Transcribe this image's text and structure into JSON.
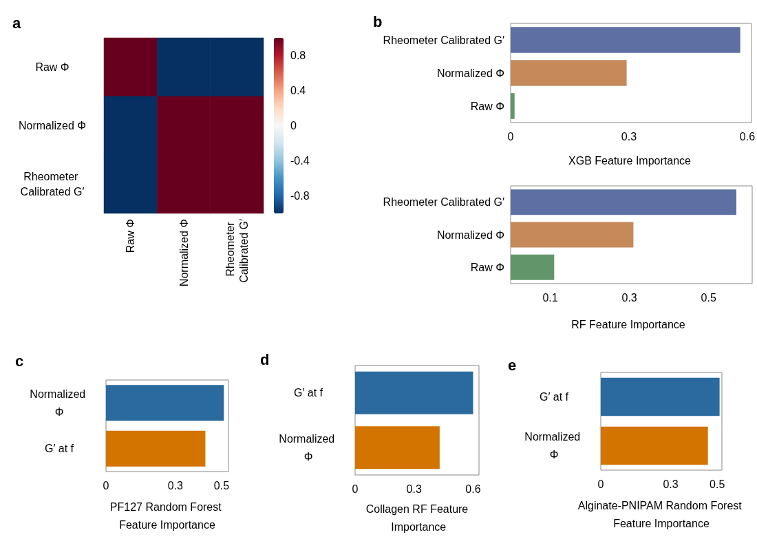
{
  "chart_data": [
    {
      "type": "heatmap",
      "annotations": [
        "a"
      ],
      "categories": [
        "Raw Φ",
        "Normalized Φ",
        "Rheometer Calibrated G′"
      ],
      "y_categories": [
        "Raw Φ",
        "Normalized Φ",
        "Rheometer Calibrated G′"
      ],
      "cells": [
        [
          1,
          -1,
          -1
        ],
        [
          -1,
          1,
          1
        ],
        [
          -1,
          1,
          1
        ]
      ],
      "clim": [
        -1,
        1
      ],
      "cticks": [
        -0.8,
        -0.4,
        0,
        0.4,
        0.8
      ]
    },
    {
      "type": "bar",
      "orientation": "horizontal",
      "annotations": [
        "b"
      ],
      "categories": [
        "Rheometer Calibrated G′",
        "Normalized Φ",
        "Raw Φ"
      ],
      "values": [
        0.582,
        0.294,
        0.01
      ],
      "colors": [
        "#5d6fa3",
        "#c5895a",
        "#62966a"
      ],
      "xlabel": "XGB Feature Importance",
      "xlim": [
        0,
        0.61
      ],
      "xticks": [
        0,
        0.3,
        0.6
      ]
    },
    {
      "type": "bar",
      "orientation": "horizontal",
      "categories": [
        "Rheometer Calibrated G′",
        "Normalized Φ",
        "Raw Φ"
      ],
      "values": [
        0.57,
        0.31,
        0.11
      ],
      "colors": [
        "#5d6fa3",
        "#c5895a",
        "#62966a"
      ],
      "xlabel": "RF Feature Importance",
      "xlim": [
        0,
        0.61
      ],
      "xticks": [
        0.1,
        0.3,
        0.5
      ]
    },
    {
      "type": "bar",
      "orientation": "horizontal",
      "annotations": [
        "c"
      ],
      "categories": [
        "Normalized Φ",
        "G′ at f"
      ],
      "values": [
        0.51,
        0.43
      ],
      "colors": [
        "#2b6a9e",
        "#d37400"
      ],
      "xlabel": "PF127 Random Forest Feature Importance",
      "xlim": [
        0,
        0.53
      ],
      "xticks": [
        0,
        0.3,
        0.5
      ]
    },
    {
      "type": "bar",
      "orientation": "horizontal",
      "annotations": [
        "d"
      ],
      "categories": [
        "G′ at f",
        "Normalized Φ"
      ],
      "values": [
        0.6,
        0.43
      ],
      "colors": [
        "#2b6a9e",
        "#d37400"
      ],
      "xlabel": "Collagen RF Feature Importance",
      "xlim": [
        0,
        0.63
      ],
      "xticks": [
        0,
        0.3,
        0.6
      ]
    },
    {
      "type": "bar",
      "orientation": "horizontal",
      "annotations": [
        "e"
      ],
      "categories": [
        "G′ at f",
        "Normalized Φ"
      ],
      "values": [
        0.51,
        0.46
      ],
      "colors": [
        "#2b6a9e",
        "#d37400"
      ],
      "xlabel": "Alginate-PNIPAM Random Forest Feature Importance",
      "xlim": [
        0,
        0.52
      ],
      "xticks": [
        0,
        0.3,
        0.5
      ]
    }
  ]
}
